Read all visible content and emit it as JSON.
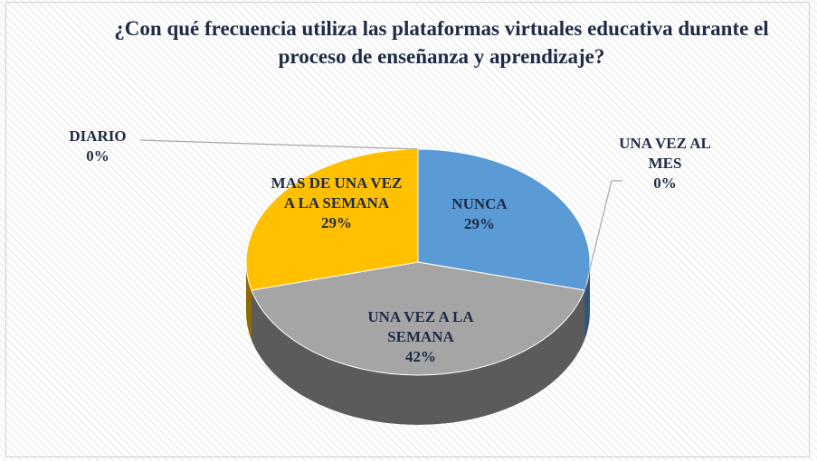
{
  "chart_data": {
    "type": "pie",
    "title": "¿Con qué frecuencia utiliza las plataformas virtuales educativa durante el proceso de enseñanza y aprendizaje?",
    "categories": [
      "NUNCA",
      "UNA VEZ AL MES",
      "UNA VEZ A LA SEMANA",
      "MAS DE UNA VEZ A LA SEMANA",
      "DIARIO"
    ],
    "values": [
      29,
      0,
      42,
      29,
      0
    ],
    "value_labels": [
      "29%",
      "0%",
      "42%",
      "29%",
      "0%"
    ],
    "colors": [
      "#5b9bd5",
      "#ed7d31",
      "#a5a5a5",
      "#ffc000",
      "#4472c4"
    ]
  }
}
